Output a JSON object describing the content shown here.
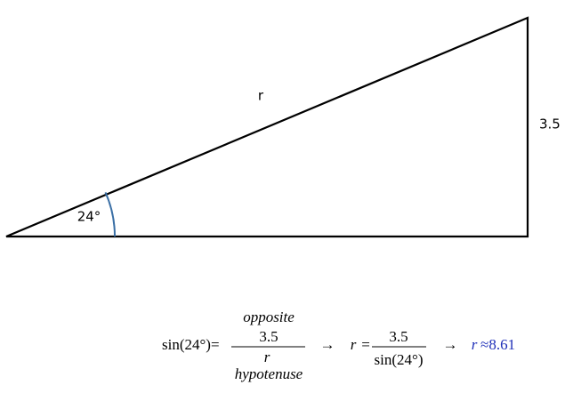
{
  "triangle": {
    "hypotenuse_label": "r",
    "opposite_label": "3.5",
    "angle_label": "24°"
  },
  "equation": {
    "lhs": "sin(24°)=",
    "top_note": "opposite",
    "numerator": "3.5",
    "denominator": "r",
    "bottom_note": "hypotenuse",
    "arrow_1": "→",
    "step_var": "r",
    "step_eq": "=",
    "step_numerator": "3.5",
    "step_denominator": "sin(24°)",
    "arrow_2": "→",
    "result_var": "r",
    "result_value": "≈8.61"
  }
}
